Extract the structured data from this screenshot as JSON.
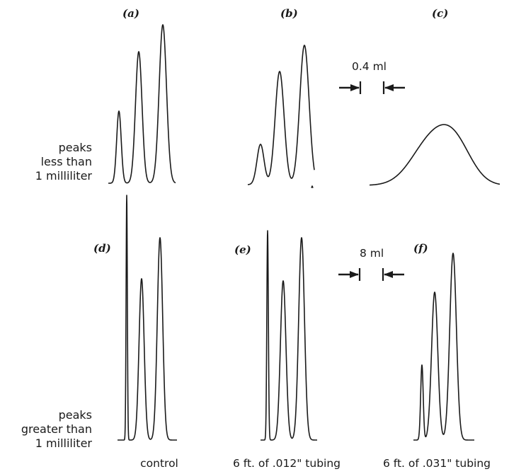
{
  "panels": {
    "a": "(a)",
    "b": "(b)",
    "c": "(c)",
    "d": "(d)",
    "e": "(e)",
    "f": "(f)"
  },
  "row_labels": {
    "top": [
      "peaks",
      "less than",
      "1 milliliter"
    ],
    "bottom": [
      "peaks",
      "greater than",
      "1 milliliter"
    ]
  },
  "markers": {
    "top": "0.4 ml",
    "bottom": "8 ml"
  },
  "captions": {
    "col1": "control",
    "col2": "6 ft. of .012\" tubing",
    "col3": "6 ft. of .031\" tubing"
  },
  "style": {
    "line_color": "#1a1a1a"
  }
}
